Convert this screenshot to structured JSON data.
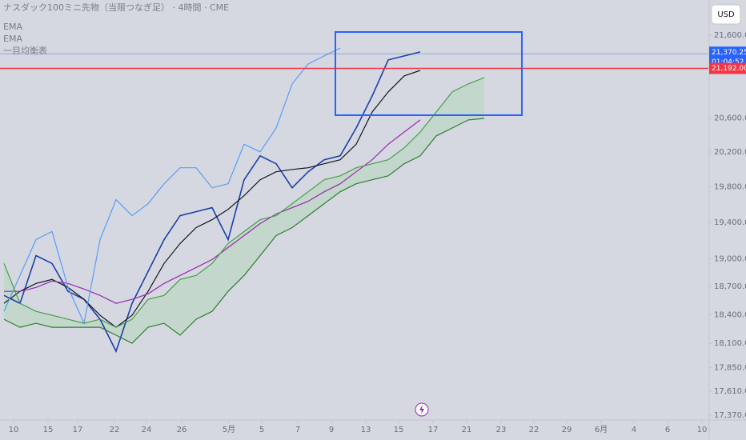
{
  "chart_data": {
    "type": "line",
    "title": "ナスダック100ミニ先物（当限つなぎ足） · 4時間 · CME",
    "currency": "USD",
    "log_scale": true,
    "grid": false,
    "x": [
      0,
      1,
      2,
      3,
      4,
      5,
      6,
      7,
      8,
      9,
      10,
      11,
      12,
      13,
      14,
      15,
      16,
      17,
      18,
      19,
      20,
      21,
      22,
      23,
      24,
      25,
      26,
      27,
      28,
      29,
      30
    ],
    "xlim": [
      -0.25,
      44
    ],
    "xticks": [
      {
        "value": 0.6,
        "label": "10"
      },
      {
        "value": 2.75,
        "label": "15"
      },
      {
        "value": 4.6,
        "label": "17"
      },
      {
        "value": 6.9,
        "label": "22"
      },
      {
        "value": 8.9,
        "label": "24"
      },
      {
        "value": 11.1,
        "label": "26"
      },
      {
        "value": 14.05,
        "label": "5月"
      },
      {
        "value": 16.1,
        "label": "5"
      },
      {
        "value": 18.35,
        "label": "7"
      },
      {
        "value": 20.45,
        "label": "9"
      },
      {
        "value": 22.6,
        "label": "13"
      },
      {
        "value": 24.65,
        "label": "15"
      },
      {
        "value": 26.8,
        "label": "17"
      },
      {
        "value": 28.9,
        "label": "21"
      },
      {
        "value": 31.05,
        "label": "23"
      },
      {
        "value": 33.1,
        "label": "22"
      },
      {
        "value": 35.15,
        "label": "29"
      },
      {
        "value": 37.3,
        "label": "6月"
      },
      {
        "value": 39.35,
        "label": "4"
      },
      {
        "value": 41.45,
        "label": "6"
      },
      {
        "value": 43.6,
        "label": "10"
      }
    ],
    "ylim": [
      17322,
      22040
    ],
    "yticks": [
      {
        "value": 17370,
        "label": "17,370.00"
      },
      {
        "value": 17610,
        "label": "17,610.00"
      },
      {
        "value": 17850,
        "label": "17,850.00"
      },
      {
        "value": 18100,
        "label": "18,100.00"
      },
      {
        "value": 18400,
        "label": "18,400.00"
      },
      {
        "value": 18700,
        "label": "18,700.00"
      },
      {
        "value": 19000,
        "label": "19,000.00"
      },
      {
        "value": 19400,
        "label": "19,400.00"
      },
      {
        "value": 19800,
        "label": "19,800.00"
      },
      {
        "value": 20200,
        "label": "20,200.00"
      },
      {
        "value": 20600,
        "label": "20,600.00"
      },
      {
        "value": 21600,
        "label": "21,600.00"
      }
    ],
    "series": [
      {
        "color": "#1c3faa",
        "values": [
          18605,
          18520,
          19035,
          18949,
          18648,
          18563,
          18352,
          18019,
          18520,
          18862,
          19210,
          19476,
          19520,
          19565,
          19210,
          19881,
          20156,
          20064,
          19790,
          19972,
          20110,
          20156,
          20480,
          20860,
          21295,
          21344,
          21393,
          null,
          null,
          null,
          null
        ]
      },
      {
        "name": "EMA",
        "color": "#131722",
        "values": [
          18520,
          18648,
          18733,
          18776,
          18690,
          18563,
          18394,
          18268,
          18394,
          18648,
          18949,
          19167,
          19343,
          19431,
          19547,
          19700,
          19881,
          19972,
          19999,
          20018,
          20064,
          20110,
          20290,
          20669,
          20908,
          21101,
          21168,
          null,
          null,
          null,
          null
        ]
      },
      {
        "name": "EMA",
        "color": "#9c27b0",
        "values": [
          18648,
          18648,
          18690,
          18759,
          18733,
          18673,
          18605,
          18520,
          18563,
          18622,
          18733,
          18819,
          18905,
          18992,
          19123,
          19254,
          19387,
          19494,
          19565,
          19637,
          19745,
          19835,
          19972,
          20110,
          20290,
          20433,
          20575,
          null,
          null,
          null,
          null
        ]
      },
      {
        "color": "#5b9cf6",
        "values": [
          18436,
          18819,
          19210,
          19299,
          18690,
          18310,
          19210,
          19655,
          19476,
          19610,
          19835,
          20018,
          20018,
          19790,
          19835,
          20290,
          20202,
          20480,
          21004,
          21246,
          21344,
          21442,
          null,
          null,
          null,
          null,
          null,
          null,
          null,
          null,
          null
        ]
      },
      {
        "name": "一目均衡表",
        "color": "#43a047",
        "values": [
          18949,
          18520,
          18436,
          18394,
          18352,
          18310,
          18352,
          18268,
          18352,
          18563,
          18605,
          18776,
          18819,
          18949,
          19167,
          19299,
          19431,
          19476,
          19610,
          19745,
          19881,
          19926,
          20018,
          20064,
          20110,
          20248,
          20433,
          20669,
          20908,
          21004,
          21081
        ]
      },
      {
        "color": "#2e7d32",
        "values": [
          18352,
          18268,
          18310,
          18268,
          18268,
          18268,
          18268,
          18185,
          18102,
          18268,
          18310,
          18185,
          18352,
          18436,
          18648,
          18819,
          19035,
          19254,
          19343,
          19476,
          19610,
          19745,
          19835,
          19881,
          19926,
          20064,
          20156,
          20387,
          20480,
          20575,
          20593
        ]
      }
    ],
    "cloud_color": "#a5d6a7",
    "last_price": {
      "value": 21370.25,
      "label": "21,370.25",
      "color": "#2962ff"
    },
    "countdown": "01:04:52",
    "price_line": {
      "value": 21192,
      "label": "21,192.00",
      "color": "#f23645"
    }
  }
}
